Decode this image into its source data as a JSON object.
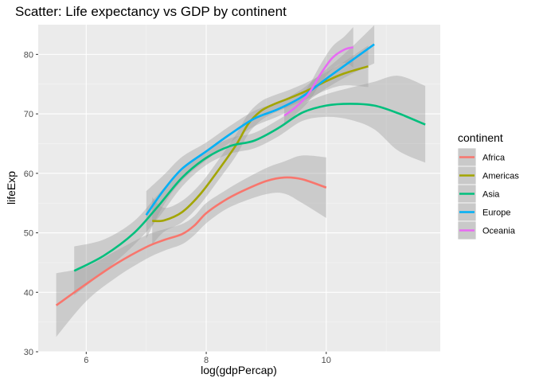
{
  "chart_data": {
    "type": "line",
    "title": "Scatter: Life expectancy vs GDP by continent",
    "xlabel": "log(gdpPercap)",
    "ylabel": "lifeExp",
    "xlim": [
      5.2,
      11.9
    ],
    "ylim": [
      30,
      85
    ],
    "x_ticks": [
      6,
      8,
      10
    ],
    "y_ticks": [
      30,
      40,
      50,
      60,
      70,
      80
    ],
    "grid": true,
    "confidence_bands": true,
    "legend": {
      "title": "continent",
      "position": "right"
    },
    "series": [
      {
        "name": "Africa",
        "color": "#F8766D",
        "x": [
          5.5,
          6.0,
          6.5,
          7.0,
          7.3,
          7.6,
          7.8,
          8.0,
          8.3,
          8.6,
          9.0,
          9.3,
          9.6,
          10.0
        ],
        "y": [
          37.8,
          41.4,
          44.8,
          47.6,
          48.8,
          49.8,
          51.2,
          53.3,
          55.4,
          57.0,
          58.7,
          59.3,
          59.0,
          57.6
        ],
        "band": [
          [
            32.5,
            43.2
          ],
          [
            38.5,
            44.3
          ],
          [
            42.5,
            47.0
          ],
          [
            45.6,
            49.6
          ],
          [
            47.0,
            50.6
          ],
          [
            48.1,
            51.5
          ],
          [
            49.6,
            52.8
          ],
          [
            51.6,
            55.0
          ],
          [
            53.8,
            57.0
          ],
          [
            55.2,
            58.8
          ],
          [
            56.5,
            60.9
          ],
          [
            56.6,
            62.0
          ],
          [
            55.0,
            63.0
          ],
          [
            52.5,
            62.7
          ]
        ]
      },
      {
        "name": "Americas",
        "color": "#A3A500",
        "x": [
          7.1,
          7.3,
          7.6,
          7.9,
          8.2,
          8.5,
          8.7,
          8.9,
          9.1,
          9.4,
          9.7,
          10.0,
          10.3,
          10.7
        ],
        "y": [
          52.0,
          52.1,
          53.5,
          56.5,
          60.5,
          64.8,
          68.3,
          70.4,
          71.5,
          72.7,
          74.0,
          75.5,
          76.8,
          78.0
        ],
        "band": [
          [
            48.0,
            56.0
          ],
          [
            50.2,
            54.2
          ],
          [
            51.8,
            55.4
          ],
          [
            54.8,
            58.2
          ],
          [
            58.8,
            62.2
          ],
          [
            63.0,
            66.6
          ],
          [
            66.6,
            70.0
          ],
          [
            68.8,
            72.0
          ],
          [
            70.0,
            73.0
          ],
          [
            71.3,
            74.1
          ],
          [
            72.6,
            75.4
          ],
          [
            74.0,
            77.0
          ],
          [
            74.8,
            78.8
          ],
          [
            74.5,
            81.5
          ]
        ]
      },
      {
        "name": "Asia",
        "color": "#00BF7D",
        "x": [
          5.8,
          6.3,
          6.8,
          7.2,
          7.6,
          8.0,
          8.4,
          8.8,
          9.2,
          9.6,
          10.0,
          10.4,
          10.8,
          11.2,
          11.65
        ],
        "y": [
          43.6,
          46.2,
          50.0,
          54.5,
          59.3,
          62.6,
          64.6,
          65.5,
          67.6,
          70.2,
          71.4,
          71.7,
          71.4,
          70.1,
          68.2
        ],
        "band": [
          [
            39.5,
            47.7
          ],
          [
            43.5,
            48.9
          ],
          [
            48.0,
            52.0
          ],
          [
            52.5,
            56.5
          ],
          [
            57.8,
            60.8
          ],
          [
            61.4,
            63.8
          ],
          [
            63.3,
            65.9
          ],
          [
            64.2,
            66.8
          ],
          [
            66.2,
            69.0
          ],
          [
            68.8,
            71.6
          ],
          [
            69.5,
            73.3
          ],
          [
            69.0,
            74.4
          ],
          [
            67.4,
            75.4
          ],
          [
            63.8,
            76.4
          ],
          [
            61.8,
            74.7
          ]
        ]
      },
      {
        "name": "Europe",
        "color": "#00B0F6",
        "x": [
          7.0,
          7.3,
          7.6,
          8.0,
          8.4,
          8.8,
          9.2,
          9.6,
          10.0,
          10.4,
          10.8
        ],
        "y": [
          53.0,
          57.3,
          60.8,
          63.7,
          66.6,
          69.2,
          70.8,
          72.9,
          75.9,
          78.8,
          81.7
        ],
        "band": [
          [
            49.0,
            57.0
          ],
          [
            54.8,
            59.8
          ],
          [
            58.8,
            62.8
          ],
          [
            62.2,
            65.2
          ],
          [
            65.2,
            68.0
          ],
          [
            67.9,
            70.5
          ],
          [
            69.6,
            72.0
          ],
          [
            71.6,
            74.2
          ],
          [
            74.3,
            77.5
          ],
          [
            76.6,
            81.0
          ],
          [
            78.5,
            84.9
          ]
        ]
      },
      {
        "name": "Oceania",
        "color": "#E76BF3",
        "x": [
          9.3,
          9.5,
          9.7,
          9.9,
          10.1,
          10.3,
          10.45
        ],
        "y": [
          69.7,
          71.2,
          73.3,
          76.6,
          79.4,
          80.8,
          81.2
        ],
        "band": [
          [
            68.0,
            71.4
          ],
          [
            70.0,
            72.4
          ],
          [
            72.0,
            74.6
          ],
          [
            75.0,
            78.2
          ],
          [
            77.5,
            81.3
          ],
          [
            78.6,
            83.0
          ],
          [
            77.8,
            84.6
          ]
        ]
      }
    ]
  }
}
